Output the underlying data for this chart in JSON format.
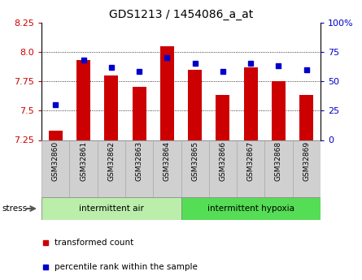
{
  "title": "GDS1213 / 1454086_a_at",
  "samples": [
    "GSM32860",
    "GSM32861",
    "GSM32862",
    "GSM32863",
    "GSM32864",
    "GSM32865",
    "GSM32866",
    "GSM32867",
    "GSM32868",
    "GSM32869"
  ],
  "transformed_counts": [
    7.33,
    7.93,
    7.8,
    7.7,
    8.05,
    7.85,
    7.63,
    7.87,
    7.75,
    7.63
  ],
  "percentile_ranks": [
    30,
    68,
    62,
    58,
    70,
    65,
    58,
    65,
    63,
    60
  ],
  "ylim_left": [
    7.25,
    8.25
  ],
  "ylim_right": [
    0,
    100
  ],
  "yticks_left": [
    7.25,
    7.5,
    7.75,
    8.0,
    8.25
  ],
  "yticks_right": [
    0,
    25,
    50,
    75,
    100
  ],
  "ytick_labels_right": [
    "0",
    "25",
    "50",
    "75",
    "100%"
  ],
  "bar_color": "#cc0000",
  "dot_color": "#0000cc",
  "base_value": 7.25,
  "group1_label": "intermittent air",
  "group2_label": "intermittent hypoxia",
  "group1_color": "#bbeeaa",
  "group2_color": "#55dd55",
  "stress_label": "stress",
  "legend1": "transformed count",
  "legend2": "percentile rank within the sample",
  "bar_width": 0.5,
  "tick_area_color": "#d0d0d0",
  "bg_color": "#ffffff"
}
